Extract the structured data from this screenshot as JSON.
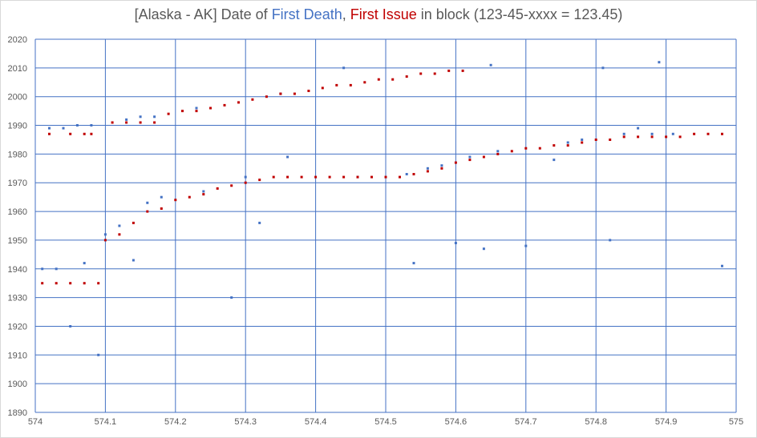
{
  "title": {
    "prefix": "[Alaska - AK] Date of ",
    "series1": "First Death",
    "sep": ", ",
    "series2": "First Issue",
    "suffix": " in block (123-45-xxxx = 123.45)"
  },
  "colors": {
    "first_death": "#4472c4",
    "first_issue": "#c00000",
    "grid": "#4472c4",
    "text": "#595959"
  },
  "chart_data": {
    "type": "scatter",
    "title": "[Alaska - AK] Date of First Death, First Issue in block (123-45-xxxx = 123.45)",
    "xlabel": "",
    "ylabel": "",
    "xlim": [
      574,
      575
    ],
    "ylim": [
      1890,
      2020
    ],
    "x_ticks": [
      "574",
      "574.1",
      "574.2",
      "574.3",
      "574.4",
      "574.5",
      "574.6",
      "574.7",
      "574.8",
      "574.9",
      "575"
    ],
    "y_ticks": [
      "2020",
      "2010",
      "2000",
      "1990",
      "1980",
      "1970",
      "1960",
      "1950",
      "1940",
      "1930",
      "1920",
      "1910",
      "1900",
      "1890"
    ],
    "grid": true,
    "series": [
      {
        "name": "First Death",
        "color": "#4472c4",
        "points": [
          [
            574.01,
            1940
          ],
          [
            574.02,
            1989
          ],
          [
            574.03,
            1940
          ],
          [
            574.04,
            1989
          ],
          [
            574.05,
            1920
          ],
          [
            574.06,
            1990
          ],
          [
            574.07,
            1942
          ],
          [
            574.08,
            1990
          ],
          [
            574.09,
            1910
          ],
          [
            574.1,
            1952
          ],
          [
            574.12,
            1955
          ],
          [
            574.13,
            1992
          ],
          [
            574.14,
            1943
          ],
          [
            574.15,
            1993
          ],
          [
            574.16,
            1963
          ],
          [
            574.17,
            1993
          ],
          [
            574.18,
            1965
          ],
          [
            574.23,
            1996
          ],
          [
            574.24,
            1967
          ],
          [
            574.28,
            1930
          ],
          [
            574.3,
            1972
          ],
          [
            574.32,
            1956
          ],
          [
            574.35,
            2001
          ],
          [
            574.36,
            1979
          ],
          [
            574.44,
            2010
          ],
          [
            574.46,
            1972
          ],
          [
            574.53,
            1973
          ],
          [
            574.54,
            1942
          ],
          [
            574.56,
            1975
          ],
          [
            574.58,
            1976
          ],
          [
            574.6,
            1949
          ],
          [
            574.62,
            1979
          ],
          [
            574.64,
            1947
          ],
          [
            574.65,
            2011
          ],
          [
            574.66,
            1981
          ],
          [
            574.7,
            1948
          ],
          [
            574.74,
            1978
          ],
          [
            574.76,
            1984
          ],
          [
            574.78,
            1985
          ],
          [
            574.81,
            2010
          ],
          [
            574.82,
            1950
          ],
          [
            574.84,
            1987
          ],
          [
            574.86,
            1989
          ],
          [
            574.88,
            1987
          ],
          [
            574.89,
            2012
          ],
          [
            574.91,
            1987
          ],
          [
            574.98,
            1941
          ]
        ]
      },
      {
        "name": "First Issue",
        "color": "#c00000",
        "points": [
          [
            574.01,
            1935
          ],
          [
            574.02,
            1987
          ],
          [
            574.03,
            1935
          ],
          [
            574.05,
            1935
          ],
          [
            574.05,
            1987
          ],
          [
            574.07,
            1935
          ],
          [
            574.07,
            1987
          ],
          [
            574.08,
            1987
          ],
          [
            574.09,
            1935
          ],
          [
            574.1,
            1950
          ],
          [
            574.11,
            1991
          ],
          [
            574.12,
            1952
          ],
          [
            574.13,
            1991
          ],
          [
            574.14,
            1956
          ],
          [
            574.15,
            1991
          ],
          [
            574.16,
            1960
          ],
          [
            574.17,
            1991
          ],
          [
            574.18,
            1961
          ],
          [
            574.19,
            1994
          ],
          [
            574.2,
            1964
          ],
          [
            574.21,
            1995
          ],
          [
            574.22,
            1965
          ],
          [
            574.23,
            1995
          ],
          [
            574.24,
            1966
          ],
          [
            574.25,
            1996
          ],
          [
            574.26,
            1968
          ],
          [
            574.27,
            1997
          ],
          [
            574.28,
            1969
          ],
          [
            574.29,
            1998
          ],
          [
            574.3,
            1970
          ],
          [
            574.31,
            1999
          ],
          [
            574.32,
            1971
          ],
          [
            574.33,
            2000
          ],
          [
            574.34,
            1972
          ],
          [
            574.35,
            2001
          ],
          [
            574.36,
            1972
          ],
          [
            574.37,
            2001
          ],
          [
            574.38,
            1972
          ],
          [
            574.39,
            2002
          ],
          [
            574.4,
            1972
          ],
          [
            574.41,
            2003
          ],
          [
            574.42,
            1972
          ],
          [
            574.43,
            2004
          ],
          [
            574.44,
            1972
          ],
          [
            574.45,
            2004
          ],
          [
            574.46,
            1972
          ],
          [
            574.47,
            2005
          ],
          [
            574.48,
            1972
          ],
          [
            574.49,
            2006
          ],
          [
            574.5,
            1972
          ],
          [
            574.51,
            2006
          ],
          [
            574.52,
            1972
          ],
          [
            574.53,
            2007
          ],
          [
            574.54,
            1973
          ],
          [
            574.55,
            2008
          ],
          [
            574.56,
            1974
          ],
          [
            574.57,
            2008
          ],
          [
            574.58,
            1975
          ],
          [
            574.59,
            2009
          ],
          [
            574.6,
            1977
          ],
          [
            574.61,
            2009
          ],
          [
            574.62,
            1978
          ],
          [
            574.64,
            1979
          ],
          [
            574.66,
            1980
          ],
          [
            574.68,
            1981
          ],
          [
            574.7,
            1982
          ],
          [
            574.72,
            1982
          ],
          [
            574.74,
            1983
          ],
          [
            574.76,
            1983
          ],
          [
            574.78,
            1984
          ],
          [
            574.8,
            1985
          ],
          [
            574.82,
            1985
          ],
          [
            574.84,
            1986
          ],
          [
            574.86,
            1986
          ],
          [
            574.88,
            1986
          ],
          [
            574.9,
            1986
          ],
          [
            574.92,
            1986
          ],
          [
            574.94,
            1987
          ],
          [
            574.96,
            1987
          ],
          [
            574.98,
            1987
          ]
        ]
      }
    ]
  }
}
